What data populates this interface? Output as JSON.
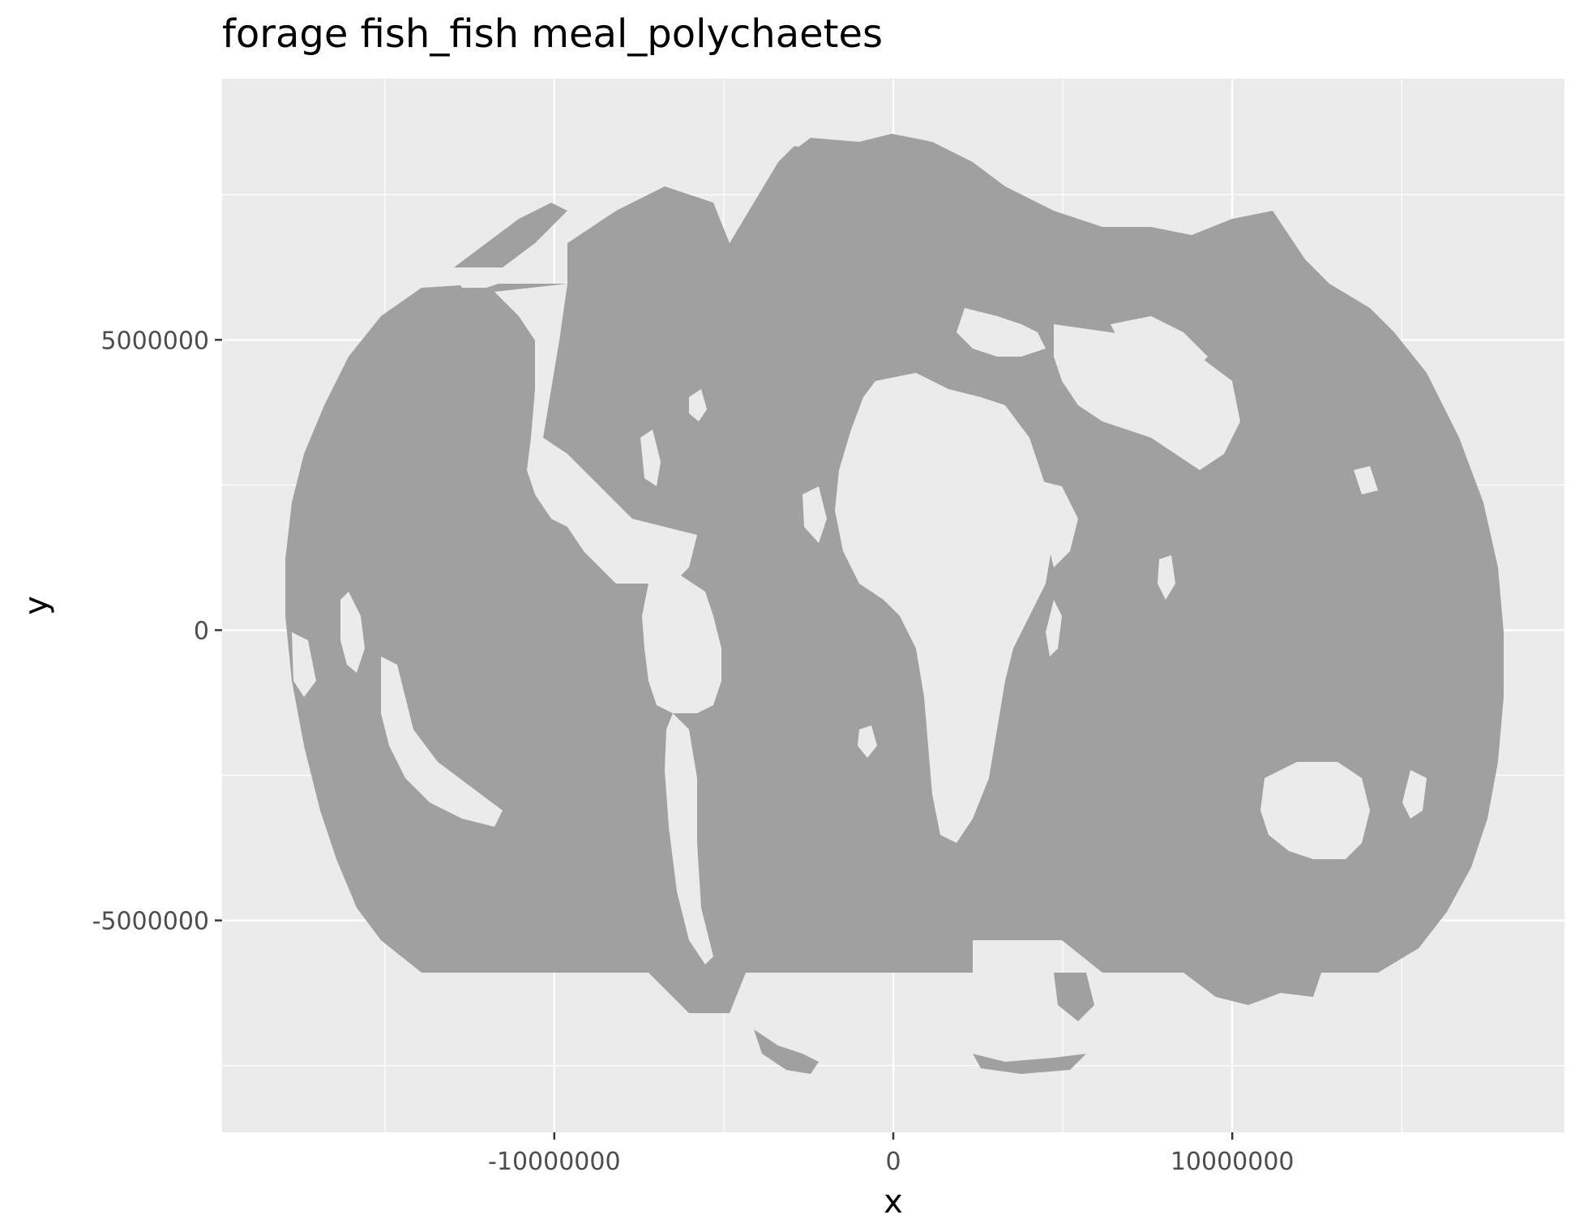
{
  "chart_data": {
    "type": "heatmap",
    "title": "forage fish_fish meal_polychaetes",
    "xlabel": "x",
    "ylabel": "y",
    "xlim": [
      -19800000,
      19800000
    ],
    "ylim": [
      -8650000,
      9500000
    ],
    "x_ticks": [
      {
        "value": -10000000,
        "label": "-10000000"
      },
      {
        "value": 0,
        "label": "0"
      },
      {
        "value": 10000000,
        "label": "10000000"
      }
    ],
    "y_ticks": [
      {
        "value": -5000000,
        "label": "-5000000"
      },
      {
        "value": 0,
        "label": "0"
      },
      {
        "value": 5000000,
        "label": "5000000"
      }
    ],
    "x_minor": [
      -15000000,
      -5000000,
      5000000,
      15000000
    ],
    "y_minor": [
      -7500000,
      -2500000,
      2500000,
      7500000
    ],
    "grid": true,
    "legend": "none",
    "series": [
      {
        "description_color_role": "ocean raster fill (constant value)"
      }
    ],
    "colors": {
      "panel": "#EBEBEB",
      "grid": "#FFFFFF",
      "fill": "#A0A0A0",
      "land": "#EBEBEB",
      "text": "#4D4D4D",
      "ticks": "#333333"
    }
  }
}
